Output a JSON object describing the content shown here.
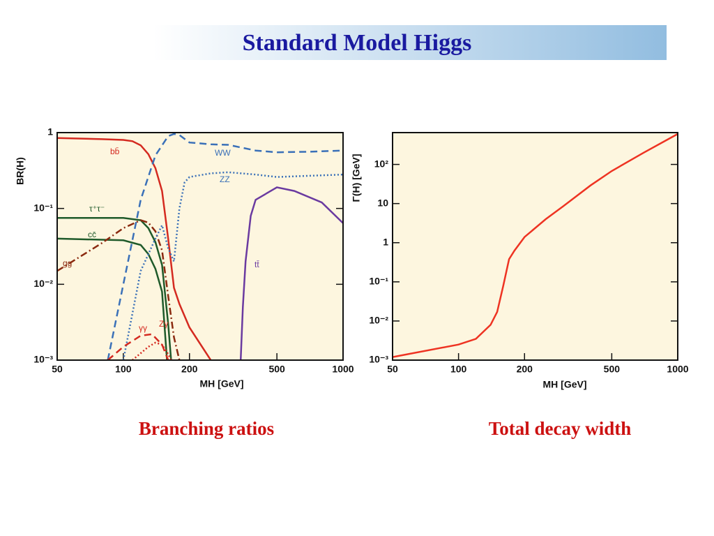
{
  "title": "Standard Model Higgs",
  "captions": [
    "Branching ratios",
    "Total decay width"
  ],
  "chart_data": [
    {
      "type": "line",
      "xlabel": "MH [GeV]",
      "ylabel": "BR(H)",
      "xscale": "log",
      "yscale": "log",
      "xlim": [
        50,
        1000
      ],
      "ylim": [
        0.001,
        1
      ],
      "xticks": [
        50,
        100,
        200,
        500,
        1000
      ],
      "yticks": [
        {
          "value": 0.001,
          "label": "10⁻³"
        },
        {
          "value": 0.01,
          "label": "10⁻²"
        },
        {
          "value": 0.1,
          "label": "10⁻¹"
        },
        1
      ],
      "series": [
        {
          "name": "bb̄",
          "color": "#d42a20",
          "dash": "solid",
          "x": [
            50,
            80,
            100,
            110,
            120,
            130,
            140,
            150,
            160,
            170,
            180,
            200,
            250
          ],
          "values": [
            0.85,
            0.82,
            0.8,
            0.77,
            0.68,
            0.52,
            0.34,
            0.17,
            0.04,
            0.009,
            0.0055,
            0.0027,
            0.001
          ]
        },
        {
          "name": "τ⁺τ⁻",
          "color": "#1f5a2a",
          "dash": "solid",
          "x": [
            50,
            100,
            120,
            130,
            140,
            150,
            160,
            165
          ],
          "values": [
            0.075,
            0.075,
            0.07,
            0.055,
            0.036,
            0.018,
            0.003,
            0.001
          ]
        },
        {
          "name": "cc̄",
          "color": "#1f5a2a",
          "dash": "solid",
          "x": [
            50,
            100,
            120,
            130,
            140,
            150,
            158
          ],
          "values": [
            0.04,
            0.038,
            0.033,
            0.025,
            0.016,
            0.008,
            0.001
          ]
        },
        {
          "name": "gg",
          "color": "#8b2a10",
          "dash": "dashdot",
          "x": [
            50,
            80,
            100,
            120,
            130,
            140,
            150,
            160,
            170,
            180
          ],
          "values": [
            0.015,
            0.035,
            0.055,
            0.07,
            0.065,
            0.05,
            0.028,
            0.007,
            0.002,
            0.001
          ]
        },
        {
          "name": "WW",
          "color": "#3a70b8",
          "dash": "dashed",
          "x": [
            85,
            100,
            120,
            140,
            160,
            170,
            180,
            200,
            250,
            300,
            400,
            500,
            700,
            1000
          ],
          "values": [
            0.001,
            0.01,
            0.13,
            0.5,
            0.9,
            0.96,
            0.93,
            0.74,
            0.7,
            0.69,
            0.58,
            0.55,
            0.56,
            0.58
          ]
        },
        {
          "name": "ZZ",
          "color": "#3a70b8",
          "dash": "dotted",
          "x": [
            100,
            120,
            140,
            150,
            160,
            170,
            180,
            190,
            200,
            250,
            300,
            400,
            500,
            1000
          ],
          "values": [
            0.001,
            0.015,
            0.04,
            0.06,
            0.03,
            0.02,
            0.1,
            0.22,
            0.26,
            0.29,
            0.3,
            0.28,
            0.26,
            0.28
          ]
        },
        {
          "name": "tt̄",
          "color": "#6a3aa0",
          "dash": "solid",
          "x": [
            342,
            350,
            360,
            380,
            400,
            500,
            600,
            800,
            1000
          ],
          "values": [
            0.001,
            0.005,
            0.02,
            0.08,
            0.13,
            0.19,
            0.17,
            0.12,
            0.064
          ]
        },
        {
          "name": "γγ",
          "color": "#d42a20",
          "dash": "dashed",
          "x": [
            85,
            100,
            120,
            135,
            150,
            160
          ],
          "values": [
            0.001,
            0.0015,
            0.0021,
            0.0022,
            0.0016,
            0.001
          ]
        },
        {
          "name": "Zγ",
          "color": "#d42a20",
          "dash": "dotted",
          "x": [
            110,
            130,
            140,
            150,
            160,
            165
          ],
          "values": [
            0.001,
            0.0015,
            0.0017,
            0.0016,
            0.0012,
            0.001
          ]
        }
      ]
    },
    {
      "type": "line",
      "xlabel": "MH [GeV]",
      "ylabel": "Γ(H) [GeV]",
      "xscale": "log",
      "yscale": "log",
      "xlim": [
        50,
        1000
      ],
      "ylim": [
        0.001,
        650
      ],
      "xticks": [
        50,
        100,
        200,
        500,
        1000
      ],
      "yticks": [
        {
          "value": 0.001,
          "label": "10⁻³"
        },
        {
          "value": 0.01,
          "label": "10⁻²"
        },
        {
          "value": 0.1,
          "label": "10⁻¹"
        },
        1,
        10,
        {
          "value": 100,
          "label": "10²"
        }
      ],
      "series": [
        {
          "color": "#ee3322",
          "dash": "solid",
          "x": [
            50,
            100,
            120,
            140,
            150,
            160,
            170,
            180,
            200,
            250,
            300,
            400,
            500,
            700,
            1000
          ],
          "values": [
            0.0012,
            0.0025,
            0.0035,
            0.008,
            0.017,
            0.08,
            0.38,
            0.63,
            1.4,
            4,
            8.5,
            29,
            68,
            200,
            600
          ]
        }
      ]
    }
  ]
}
